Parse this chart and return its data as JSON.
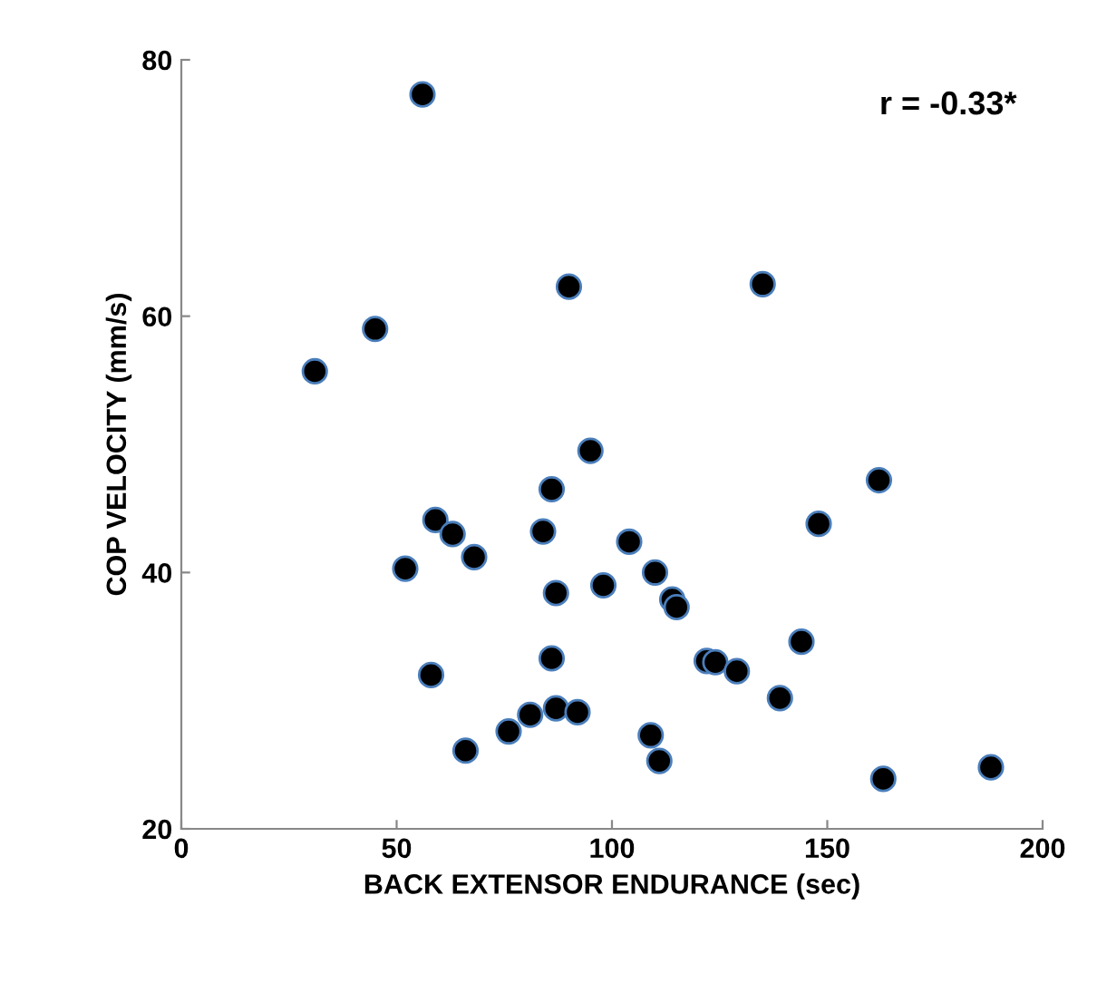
{
  "chart_data": {
    "type": "scatter",
    "xlabel": "BACK EXTENSOR ENDURANCE (sec)",
    "ylabel": "COP VELOCITY (mm/s)",
    "annotations": [
      "r = -0.33*"
    ],
    "xlim": [
      0,
      200
    ],
    "xticks": [
      0,
      50,
      100,
      150,
      200
    ],
    "ylim": [
      20,
      80
    ],
    "yticks": [
      20,
      40,
      60,
      80
    ],
    "grid": false,
    "legend": false,
    "marker": "circle",
    "series": [
      {
        "color": "#000000",
        "x": [
          31,
          45,
          56,
          90,
          135,
          95,
          86,
          162,
          148,
          59,
          63,
          52,
          68,
          84,
          104,
          110,
          98,
          87,
          114,
          115,
          144,
          86,
          122,
          124,
          129,
          58,
          139,
          87,
          81,
          92,
          76,
          109,
          66,
          111,
          163,
          188
        ],
        "values": [
          55.7,
          59,
          77.3,
          62.3,
          62.5,
          49.5,
          46.5,
          47.2,
          43.8,
          44.1,
          43,
          40.3,
          41.2,
          43.2,
          42.4,
          40,
          39,
          38.4,
          37.9,
          37.3,
          34.6,
          33.3,
          33.1,
          33,
          32.3,
          32,
          30.2,
          29.4,
          28.9,
          29.1,
          27.6,
          27.3,
          26.1,
          25.3,
          23.9,
          24.8
        ]
      }
    ]
  }
}
